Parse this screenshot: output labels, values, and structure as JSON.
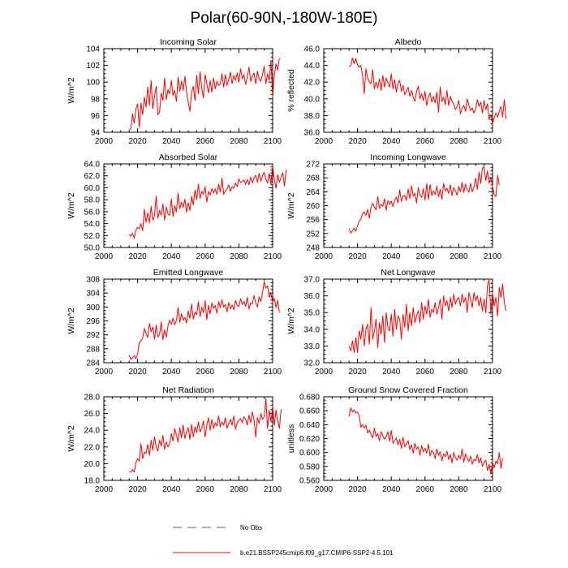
{
  "figure": {
    "title": "Polar(60-90N,-180W-180E)",
    "legend": [
      {
        "label": "No Obs",
        "style": "dashed",
        "color": "#5a5ab0"
      },
      {
        "label": "b.e21.BSSP245cmip6.f09_g17.CMIP6-SSP2-4.5.101",
        "style": "solid",
        "color": "#ff0000"
      }
    ]
  },
  "chart_data": [
    {
      "type": "line",
      "title": "Incoming Solar",
      "xlabel": "",
      "ylabel": "W/m^2",
      "xlim": [
        2000,
        2100
      ],
      "ylim": [
        94,
        104
      ],
      "xticks": [
        2000,
        2020,
        2040,
        2060,
        2080,
        2100
      ],
      "xtick_labels": [
        "2000",
        "2020",
        "2040",
        "2060",
        "2080",
        "2100"
      ],
      "yticks": [
        94,
        96,
        98,
        100,
        102,
        104
      ],
      "ytick_labels": [
        "94",
        "96",
        "98",
        "100",
        "102",
        "104"
      ],
      "grid": false,
      "start_year": 2015,
      "color": "#ff0000",
      "values": [
        94.3,
        94.4,
        96.2,
        95.1,
        96.8,
        97.4,
        94.6,
        97.5,
        96.1,
        98.2,
        97.0,
        99.4,
        97.2,
        100.2,
        96.8,
        98.3,
        99.5,
        96.1,
        96.4,
        98.7,
        97.8,
        100.5,
        97.9,
        99.1,
        98.6,
        100.2,
        98.4,
        99.0,
        97.7,
        100.6,
        98.9,
        100.1,
        99.0,
        100.7,
        98.8,
        97.6,
        96.5,
        98.8,
        99.5,
        97.8,
        100.8,
        98.6,
        101.2,
        99.3,
        98.1,
        100.9,
        99.8,
        98.7,
        100.2,
        98.8,
        100.5,
        99.2,
        100.1,
        99.6,
        99.8,
        101.0,
        99.4,
        100.9,
        99.6,
        100.3,
        101.2,
        99.8,
        100.8,
        100.2,
        101.1,
        100.0,
        101.6,
        100.4,
        100.9,
        99.7,
        100.6,
        101.8,
        100.1,
        100.7,
        101.1,
        99.8,
        101.3,
        100.4,
        100.1,
        100.9,
        101.9,
        99.8,
        101.0,
        100.2,
        102.6,
        98.2,
        100.8,
        102.2,
        101.4,
        102.9
      ]
    },
    {
      "type": "line",
      "title": "Albedo",
      "xlabel": "",
      "ylabel": "% reflected",
      "xlim": [
        2000,
        2100
      ],
      "ylim": [
        36,
        46
      ],
      "xticks": [
        2000,
        2020,
        2040,
        2060,
        2080,
        2100
      ],
      "xtick_labels": [
        "2000",
        "2020",
        "2040",
        "2060",
        "2080",
        "2100"
      ],
      "yticks": [
        36,
        38,
        40,
        42,
        44,
        46
      ],
      "ytick_labels": [
        "36.0",
        "38.0",
        "40.0",
        "42.0",
        "44.0",
        "46.0"
      ],
      "grid": false,
      "start_year": 2015,
      "color": "#ff0000",
      "values": [
        43.8,
        44.0,
        44.9,
        44.2,
        44.8,
        44.1,
        43.8,
        44.0,
        42.8,
        40.6,
        43.6,
        42.5,
        42.0,
        41.8,
        43.5,
        41.2,
        42.0,
        41.3,
        42.4,
        41.0,
        42.8,
        41.4,
        42.5,
        41.9,
        41.4,
        43.0,
        41.2,
        42.3,
        40.8,
        41.9,
        42.2,
        40.9,
        41.6,
        40.5,
        40.9,
        41.4,
        40.3,
        41.0,
        40.2,
        39.7,
        40.9,
        41.5,
        40.0,
        40.6,
        39.8,
        40.9,
        39.2,
        40.2,
        40.7,
        39.6,
        40.3,
        39.5,
        40.8,
        38.4,
        41.4,
        39.7,
        40.2,
        39.3,
        41.0,
        39.2,
        40.3,
        39.7,
        39.4,
        38.7,
        39.1,
        39.8,
        38.2,
        38.9,
        39.2,
        38.5,
        40.0,
        39.2,
        38.6,
        38.9,
        38.3,
        38.8,
        39.9,
        39.1,
        39.6,
        38.3,
        39.8,
        38.7,
        39.4,
        37.5,
        38.1,
        37.0,
        37.7,
        38.3,
        37.8,
        38.5,
        39.1,
        37.8,
        39.9,
        37.6
      ]
    },
    {
      "type": "line",
      "title": "Absorbed Solar",
      "xlabel": "",
      "ylabel": "W/m^2",
      "xlim": [
        2000,
        2100
      ],
      "ylim": [
        50,
        64
      ],
      "xticks": [
        2000,
        2020,
        2040,
        2060,
        2080,
        2100
      ],
      "xtick_labels": [
        "2000",
        "2020",
        "2040",
        "2060",
        "2080",
        "2100"
      ],
      "yticks": [
        50,
        52,
        54,
        56,
        58,
        60,
        62,
        64
      ],
      "ytick_labels": [
        "50.0",
        "52.0",
        "54.0",
        "56.0",
        "58.0",
        "60.0",
        "62.0",
        "64.0"
      ],
      "grid": false,
      "start_year": 2015,
      "color": "#ff0000",
      "values": [
        52.2,
        51.9,
        52.4,
        51.6,
        52.9,
        53.4,
        53.1,
        54.0,
        52.8,
        56.4,
        54.2,
        55.8,
        54.1,
        56.9,
        54.6,
        55.3,
        58.6,
        54.9,
        56.2,
        55.4,
        57.3,
        54.6,
        56.8,
        55.6,
        55.4,
        58.1,
        55.2,
        57.0,
        56.0,
        59.1,
        56.5,
        57.6,
        56.7,
        58.1,
        55.9,
        57.5,
        56.2,
        58.6,
        57.1,
        59.6,
        58.0,
        60.6,
        58.2,
        59.4,
        58.9,
        60.2,
        57.6,
        59.4,
        58.8,
        59.9,
        59.1,
        59.8,
        58.9,
        60.6,
        59.3,
        61.6,
        58.9,
        59.5,
        59.8,
        60.5,
        59.4,
        60.2,
        59.9,
        60.8,
        60.2,
        61.5,
        60.9,
        61.0,
        61.3,
        60.6,
        61.4,
        60.5,
        61.8,
        60.8,
        61.7,
        62.1,
        60.9,
        62.4,
        61.1,
        62.0,
        62.6,
        61.4,
        60.8,
        62.4,
        60.6,
        63.7,
        61.4,
        59.9,
        62.2,
        60.9,
        61.8,
        62.5,
        60.3,
        63.0
      ]
    },
    {
      "type": "line",
      "title": "Incoming Longwave",
      "xlabel": "",
      "ylabel": "W/m^2",
      "xlim": [
        2000,
        2100
      ],
      "ylim": [
        248,
        272
      ],
      "xticks": [
        2000,
        2020,
        2040,
        2060,
        2080,
        2100
      ],
      "xtick_labels": [
        "2000",
        "2020",
        "2040",
        "2060",
        "2080",
        "2100"
      ],
      "yticks": [
        248,
        252,
        256,
        260,
        264,
        268,
        272
      ],
      "ytick_labels": [
        "248",
        "252",
        "256",
        "260",
        "264",
        "268",
        "272"
      ],
      "grid": false,
      "start_year": 2015,
      "color": "#ff0000",
      "values": [
        253.4,
        252.1,
        252.8,
        253.6,
        252.7,
        254.2,
        255.6,
        256.1,
        257.8,
        258.2,
        257.2,
        258.9,
        256.4,
        259.6,
        260.7,
        259.6,
        258.8,
        262.6,
        259.2,
        260.4,
        259.8,
        262.0,
        258.7,
        261.5,
        260.4,
        261.3,
        259.7,
        261.6,
        262.5,
        260.8,
        264.6,
        261.2,
        262.8,
        262.9,
        261.5,
        264.8,
        262.1,
        265.7,
        262.7,
        263.6,
        260.8,
        265.2,
        263.1,
        262.4,
        264.9,
        261.6,
        266.3,
        261.8,
        266.1,
        262.9,
        264.3,
        263.2,
        265.6,
        262.6,
        264.7,
        261.8,
        266.4,
        264.2,
        265.0,
        263.5,
        266.0,
        262.9,
        265.2,
        264.3,
        263.0,
        265.5,
        264.0,
        266.7,
        263.8,
        266.2,
        264.6,
        263.9,
        266.4,
        264.0,
        265.3,
        267.9,
        264.7,
        269.6,
        266.4,
        270.8,
        271.2,
        267.2,
        270.0,
        266.4,
        268.1,
        265.5,
        263.2,
        262.6,
        268.7,
        266.0
      ]
    },
    {
      "type": "line",
      "title": "Emitted Longwave",
      "xlabel": "",
      "ylabel": "W/m^2",
      "xlim": [
        2000,
        2100
      ],
      "ylim": [
        284,
        308
      ],
      "xticks": [
        2000,
        2020,
        2040,
        2060,
        2080,
        2100
      ],
      "xtick_labels": [
        "2000",
        "2020",
        "2040",
        "2060",
        "2080",
        "2100"
      ],
      "yticks": [
        284,
        288,
        292,
        296,
        300,
        304,
        308
      ],
      "ytick_labels": [
        "284",
        "288",
        "292",
        "296",
        "300",
        "304",
        "308"
      ],
      "grid": false,
      "start_year": 2015,
      "color": "#ff0000",
      "values": [
        286.2,
        284.9,
        285.4,
        286.1,
        285.2,
        286.4,
        289.8,
        290.3,
        291.0,
        293.8,
        292.4,
        291.2,
        295.3,
        292.9,
        294.2,
        290.7,
        294.8,
        291.4,
        292.1,
        295.7,
        290.6,
        293.4,
        291.3,
        294.6,
        296.2,
        295.0,
        296.8,
        294.9,
        296.1,
        299.8,
        295.6,
        298.1,
        296.2,
        297.0,
        295.4,
        298.9,
        296.7,
        300.8,
        296.5,
        298.6,
        297.8,
        301.5,
        297.3,
        299.9,
        298.4,
        301.8,
        296.4,
        300.5,
        298.0,
        301.2,
        299.6,
        300.4,
        298.2,
        301.6,
        299.8,
        302.1,
        299.9,
        300.7,
        298.6,
        301.3,
        299.4,
        300.6,
        299.2,
        301.9,
        300.5,
        300.1,
        302.4,
        300.7,
        301.6,
        300.2,
        302.8,
        299.4,
        301.1,
        300.9,
        303.3,
        301.2,
        300.0,
        302.9,
        301.6,
        304.1,
        307.2,
        305.4,
        306.1,
        302.8,
        304.0,
        301.3,
        302.5,
        299.8,
        301.9,
        298.4
      ]
    },
    {
      "type": "line",
      "title": "Net Longwave",
      "xlabel": "",
      "ylabel": "W/m^2",
      "xlim": [
        2000,
        2100
      ],
      "ylim": [
        32,
        37
      ],
      "xticks": [
        2000,
        2020,
        2040,
        2060,
        2080,
        2100
      ],
      "xtick_labels": [
        "2000",
        "2020",
        "2040",
        "2060",
        "2080",
        "2100"
      ],
      "yticks": [
        32,
        33,
        34,
        35,
        36,
        37
      ],
      "ytick_labels": [
        "32.0",
        "33.0",
        "34.0",
        "35.0",
        "36.0",
        "37.0"
      ],
      "grid": false,
      "start_year": 2015,
      "color": "#ff0000",
      "values": [
        33.0,
        32.7,
        33.3,
        32.6,
        33.5,
        32.6,
        33.9,
        33.4,
        34.3,
        33.0,
        34.0,
        34.3,
        33.1,
        35.3,
        33.4,
        33.9,
        34.6,
        32.9,
        34.4,
        33.7,
        34.8,
        33.2,
        35.0,
        34.1,
        33.9,
        34.9,
        33.6,
        35.2,
        34.0,
        34.8,
        34.6,
        33.4,
        34.9,
        34.1,
        35.5,
        33.9,
        35.0,
        34.2,
        35.3,
        34.4,
        34.8,
        35.1,
        34.4,
        35.6,
        34.6,
        35.4,
        34.9,
        35.8,
        34.7,
        35.2,
        35.0,
        35.6,
        34.9,
        35.3,
        35.8,
        34.6,
        36.0,
        35.4,
        35.7,
        35.1,
        35.9,
        35.3,
        36.1,
        35.5,
        35.8,
        35.9,
        35.4,
        36.1,
        35.6,
        35.9,
        35.0,
        36.2,
        35.8,
        35.3,
        36.2,
        35.7,
        36.0,
        35.4,
        35.9,
        35.1,
        35.8,
        35.0,
        36.6,
        37.0,
        34.9,
        36.2,
        35.4,
        35.9,
        34.8,
        36.5,
        35.9,
        36.7,
        35.6,
        35.1
      ]
    },
    {
      "type": "line",
      "title": "Net Radiation",
      "xlabel": "",
      "ylabel": "W/m^2",
      "xlim": [
        2000,
        2100
      ],
      "ylim": [
        18,
        28
      ],
      "xticks": [
        2000,
        2020,
        2040,
        2060,
        2080,
        2100
      ],
      "xtick_labels": [
        "2000",
        "2020",
        "2040",
        "2060",
        "2080",
        "2100"
      ],
      "yticks": [
        18,
        20,
        22,
        24,
        26,
        28
      ],
      "ytick_labels": [
        "18.0",
        "20.0",
        "22.0",
        "24.0",
        "26.0",
        "28.0"
      ],
      "grid": false,
      "start_year": 2015,
      "color": "#ff0000",
      "values": [
        19.1,
        19.0,
        19.3,
        19.0,
        20.1,
        20.6,
        20.3,
        22.4,
        20.6,
        21.4,
        21.2,
        22.3,
        21.0,
        22.8,
        21.6,
        23.2,
        22.0,
        21.5,
        22.8,
        22.1,
        23.4,
        21.7,
        22.6,
        22.0,
        22.4,
        23.6,
        22.7,
        24.2,
        23.4,
        22.6,
        24.3,
        23.1,
        24.6,
        23.0,
        23.8,
        24.3,
        22.9,
        24.7,
        23.2,
        24.4,
        23.7,
        25.0,
        23.8,
        24.3,
        25.1,
        23.2,
        24.6,
        25.5,
        24.0,
        25.3,
        24.2,
        24.9,
        24.5,
        25.7,
        24.4,
        25.0,
        24.6,
        25.5,
        24.2,
        24.8,
        25.3,
        24.6,
        25.7,
        24.1,
        24.9,
        25.2,
        25.4,
        24.9,
        25.6,
        25.3,
        24.6,
        25.8,
        24.9,
        26.2,
        25.2,
        23.2,
        25.5,
        24.8,
        26.0,
        25.3,
        25.6,
        27.8,
        24.2,
        26.4,
        25.0,
        26.9,
        24.6,
        26.4,
        25.1,
        24.2,
        26.5
      ]
    },
    {
      "type": "line",
      "title": "Ground Snow Covered Fraction",
      "xlabel": "",
      "ylabel": "unitless",
      "xlim": [
        2000,
        2100
      ],
      "ylim": [
        0.56,
        0.68
      ],
      "xticks": [
        2000,
        2020,
        2040,
        2060,
        2080,
        2100
      ],
      "xtick_labels": [
        "2000",
        "2020",
        "2040",
        "2060",
        "2080",
        "2100"
      ],
      "yticks": [
        0.56,
        0.58,
        0.6,
        0.62,
        0.64,
        0.66,
        0.68
      ],
      "ytick_labels": [
        "0.560",
        "0.580",
        "0.600",
        "0.620",
        "0.640",
        "0.660",
        "0.680"
      ],
      "grid": false,
      "start_year": 2015,
      "color": "#ff0000",
      "values": [
        0.652,
        0.664,
        0.658,
        0.661,
        0.657,
        0.658,
        0.653,
        0.636,
        0.64,
        0.635,
        0.639,
        0.628,
        0.632,
        0.626,
        0.621,
        0.635,
        0.623,
        0.627,
        0.617,
        0.63,
        0.624,
        0.619,
        0.623,
        0.63,
        0.616,
        0.632,
        0.613,
        0.617,
        0.621,
        0.611,
        0.619,
        0.606,
        0.622,
        0.608,
        0.612,
        0.617,
        0.604,
        0.611,
        0.599,
        0.613,
        0.605,
        0.608,
        0.596,
        0.61,
        0.601,
        0.606,
        0.599,
        0.612,
        0.595,
        0.603,
        0.6,
        0.591,
        0.605,
        0.596,
        0.601,
        0.588,
        0.598,
        0.594,
        0.602,
        0.59,
        0.597,
        0.585,
        0.6,
        0.593,
        0.589,
        0.596,
        0.591,
        0.605,
        0.586,
        0.598,
        0.592,
        0.587,
        0.595,
        0.583,
        0.59,
        0.588,
        0.597,
        0.585,
        0.592,
        0.58,
        0.586,
        0.589,
        0.574,
        0.583,
        0.569,
        0.586,
        0.578,
        0.588,
        0.584,
        0.6,
        0.577,
        0.592
      ]
    }
  ]
}
